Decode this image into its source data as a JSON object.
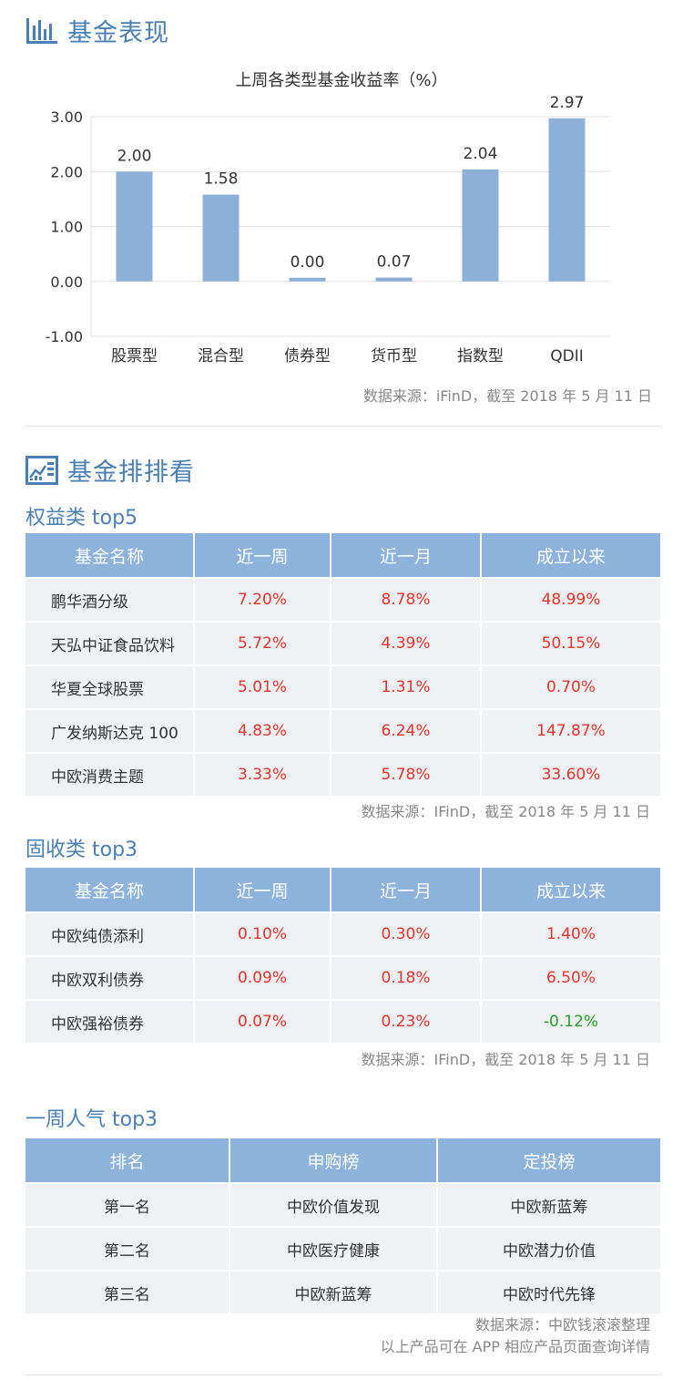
{
  "section1": {
    "title": "基金表现",
    "icon": "bar-chart-icon"
  },
  "chart_data": {
    "type": "bar",
    "title": "上周各类型基金收益率（%）",
    "categories": [
      "股票型",
      "混合型",
      "债券型",
      "货币型",
      "指数型",
      "QDII"
    ],
    "values": [
      2.0,
      1.58,
      0.0,
      0.07,
      2.04,
      2.97
    ],
    "value_labels": [
      "2.00",
      "1.58",
      "0.00",
      "0.07",
      "2.04",
      "2.97"
    ],
    "yticks": [
      "3.00",
      "2.00",
      "1.00",
      "0.00",
      "-1.00"
    ],
    "ylim": [
      -1,
      3
    ],
    "grid": true,
    "bar_color": "#8db0d9"
  },
  "source1": "数据来源：iFinD，截至 2018 年 5 月 11 日",
  "section2": {
    "title": "基金排排看",
    "icon": "dashboard-icon"
  },
  "equity": {
    "title": "权益类 top5",
    "headers": [
      "基金名称",
      "近一周",
      "近一月",
      "成立以来"
    ],
    "rows": [
      [
        "鹏华酒分级",
        "7.20%",
        "8.78%",
        "48.99%"
      ],
      [
        "天弘中证食品饮料",
        "5.72%",
        "4.39%",
        "50.15%"
      ],
      [
        "华夏全球股票",
        "5.01%",
        "1.31%",
        "0.70%"
      ],
      [
        "广发纳斯达克 100",
        "4.83%",
        "6.24%",
        "147.87%"
      ],
      [
        "中欧消费主题",
        "3.33%",
        "5.78%",
        "33.60%"
      ]
    ],
    "source": "数据来源：IFinD，截至 2018 年 5 月 11 日"
  },
  "fixed": {
    "title": "固收类 top3",
    "headers": [
      "基金名称",
      "近一周",
      "近一月",
      "成立以来"
    ],
    "rows": [
      [
        "中欧纯债添利",
        "0.10%",
        "0.30%",
        "1.40%"
      ],
      [
        "中欧双利债券",
        "0.09%",
        "0.18%",
        "6.50%"
      ],
      [
        "中欧强裕债券",
        "0.07%",
        "0.23%",
        "-0.12%"
      ]
    ],
    "source": "数据来源：IFinD，截至 2018 年 5 月 11 日"
  },
  "popular": {
    "title": "一周人气 top3",
    "headers": [
      "排名",
      "申购榜",
      "定投榜"
    ],
    "rows": [
      [
        "第一名",
        "中欧价值发现",
        "中欧新蓝筹"
      ],
      [
        "第二名",
        "中欧医疗健康",
        "中欧潜力价值"
      ],
      [
        "第三名",
        "中欧新蓝筹",
        "中欧时代先锋"
      ]
    ],
    "source_line1": "数据来源：中欧钱滚滚整理",
    "source_line2": "以上产品可在 APP 相应产品页面查询详情"
  },
  "colors": {
    "accent": "#4a7fb5",
    "header_bg": "#8db3dc",
    "row_bg": "#f0f1f5",
    "positive": "#e8352e",
    "negative": "#2a9d2a"
  }
}
